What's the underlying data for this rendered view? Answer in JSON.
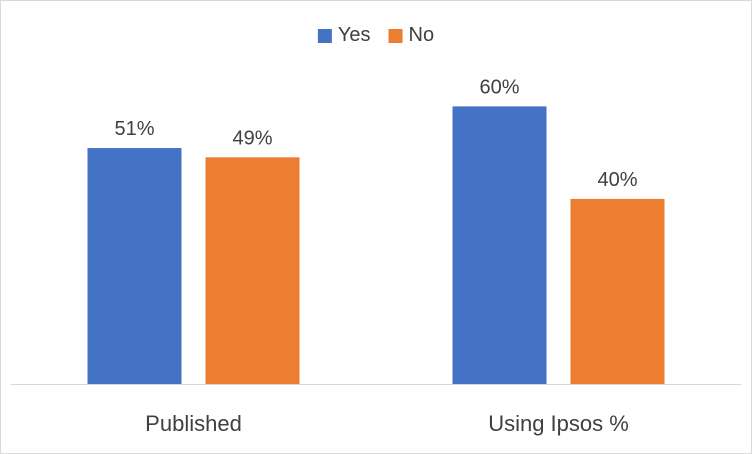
{
  "chart_data": {
    "type": "bar",
    "categories": [
      "Published",
      "Using Ipsos %"
    ],
    "series": [
      {
        "name": "Yes",
        "values": [
          51,
          60
        ],
        "labels": [
          "51%",
          "60%"
        ],
        "color": "#4472C4"
      },
      {
        "name": "No",
        "values": [
          49,
          40
        ],
        "labels": [
          "49%",
          "40%"
        ],
        "color": "#ED7D31"
      }
    ],
    "ylim": [
      0,
      75
    ],
    "grid": false,
    "legend_position": "top-center",
    "axis_color": "#d9d9d9"
  }
}
